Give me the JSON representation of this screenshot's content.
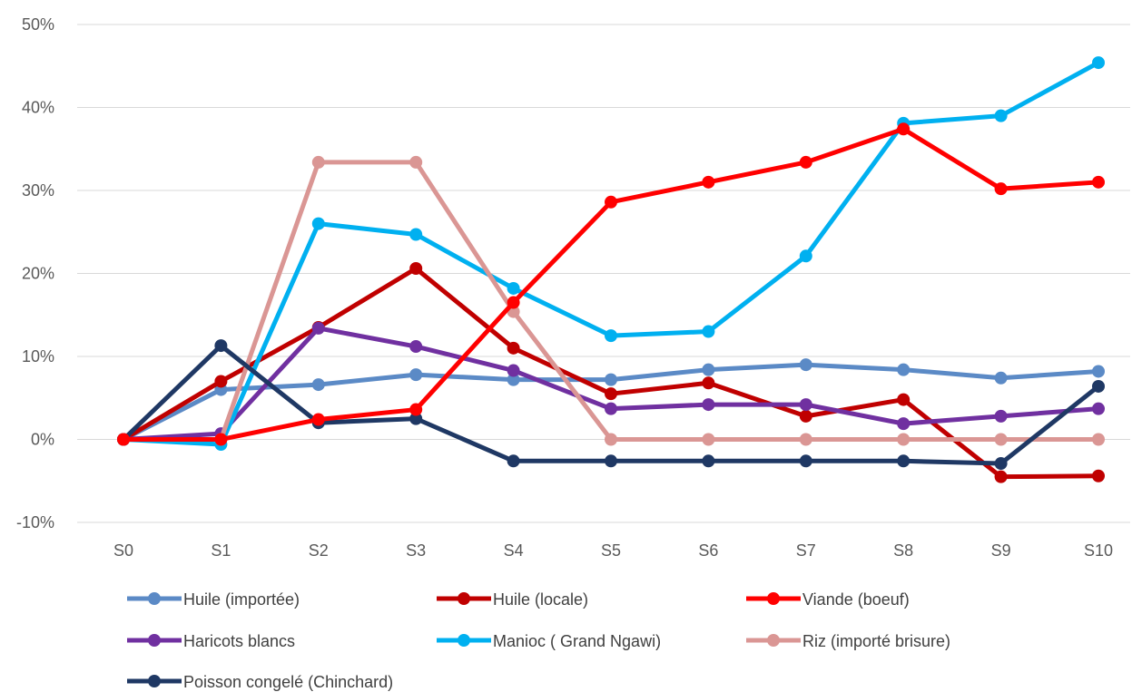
{
  "chart_data": {
    "type": "line",
    "title": "",
    "xlabel": "",
    "ylabel": "",
    "categories": [
      "S0",
      "S1",
      "S2",
      "S3",
      "S4",
      "S5",
      "S6",
      "S7",
      "S8",
      "S9",
      "S10"
    ],
    "ylim": [
      -10,
      50
    ],
    "yticks": [
      -10,
      0,
      10,
      20,
      30,
      40,
      50
    ],
    "ytick_labels": [
      "-10%",
      "0%",
      "10%",
      "20%",
      "30%",
      "40%",
      "50%"
    ],
    "grid": true,
    "legend_position": "bottom",
    "series": [
      {
        "name": "Huile (importée)",
        "color": "#5b8ac6",
        "values": [
          0,
          6.0,
          6.6,
          7.8,
          7.2,
          7.2,
          8.4,
          9.0,
          8.4,
          7.4,
          8.2
        ]
      },
      {
        "name": "Huile (locale)",
        "color": "#c00000",
        "values": [
          0,
          7.0,
          13.5,
          20.6,
          11.0,
          5.5,
          6.8,
          2.8,
          4.8,
          -4.5,
          -4.4
        ]
      },
      {
        "name": "Viande (boeuf)",
        "color": "#ff0000",
        "values": [
          0,
          0,
          2.4,
          3.6,
          16.5,
          28.6,
          31.0,
          33.4,
          37.4,
          30.2,
          31.0
        ]
      },
      {
        "name": "Haricots blancs",
        "color": "#7030a0",
        "values": [
          0,
          0.7,
          13.4,
          11.2,
          8.3,
          3.7,
          4.2,
          4.2,
          1.9,
          2.8,
          3.7
        ]
      },
      {
        "name": "Manioc ( Grand Ngawi)",
        "color": "#00b0f0",
        "values": [
          0,
          -0.6,
          26.0,
          24.7,
          18.2,
          12.5,
          13.0,
          22.1,
          38.1,
          39.0,
          45.4
        ]
      },
      {
        "name": "Riz (importé brisure)",
        "color": "#da9694",
        "values": [
          0,
          0,
          33.4,
          33.4,
          15.4,
          0,
          0,
          0,
          0,
          0,
          0
        ]
      },
      {
        "name": "Poisson congelé (Chinchard)",
        "color": "#1f3864",
        "values": [
          0,
          11.3,
          2.0,
          2.5,
          -2.6,
          -2.6,
          -2.6,
          -2.6,
          -2.6,
          -2.9,
          6.4
        ]
      }
    ]
  }
}
